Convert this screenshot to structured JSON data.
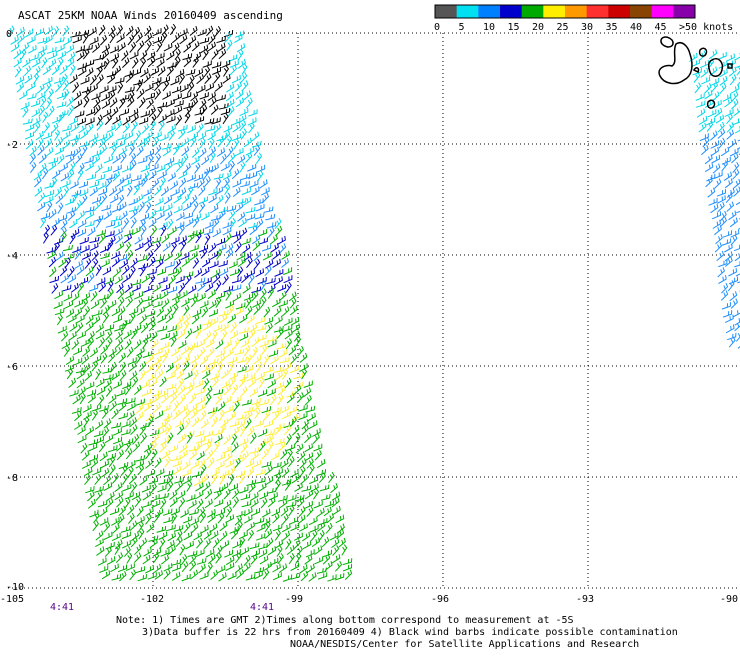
{
  "title": "ASCAT 25KM NOAA Winds 20160409 ascending",
  "legend": {
    "labels": [
      "0",
      "5",
      "10",
      "15",
      "20",
      "25",
      "30",
      "35",
      "40",
      "45",
      ">50 knots"
    ],
    "colors": [
      "#555555",
      "#00e0f0",
      "#0080ff",
      "#0000cc",
      "#00aa00",
      "#ffee00",
      "#ff9900",
      "#ff3030",
      "#cc0000",
      "#884400",
      "#ff00ff",
      "#8800aa"
    ]
  },
  "axes": {
    "lon_labels": [
      "-105",
      "-102",
      "-99",
      "-96",
      "-93",
      "-90"
    ],
    "lat_labels": [
      "0",
      "-2",
      "-4",
      "-6",
      "-8",
      "-10"
    ]
  },
  "times": [
    "4:41",
    "4:41"
  ],
  "notes": {
    "line1": "Note: 1) Times are GMT 2)Times along bottom correspond to measurement at -5S",
    "line2": "3)Data buffer is 22 hrs from 20160409 4) Black wind barbs indicate possible contamination",
    "line3": "NOAA/NESDIS/Center for Satellite Applications and Research"
  },
  "colors": {
    "calm": "#000000",
    "light": "#00d8e8",
    "moderate": "#2090ff",
    "fresh": "#0000c8",
    "strong": "#00b000",
    "gale": "#ffee33"
  }
}
